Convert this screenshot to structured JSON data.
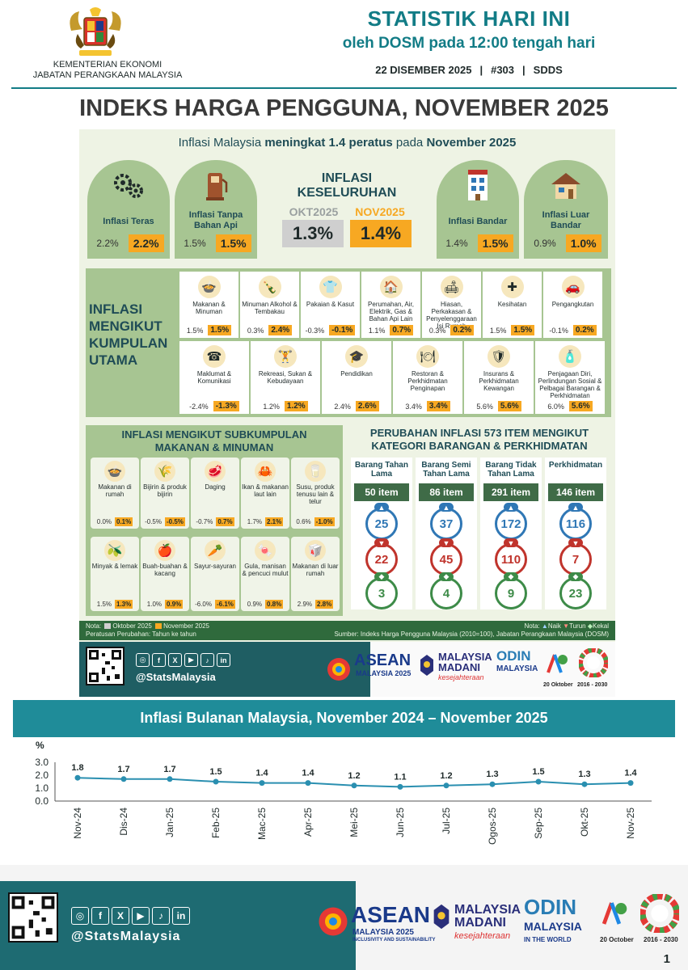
{
  "header": {
    "ministry_line1": "KEMENTERIAN EKONOMI",
    "ministry_line2": "JABATAN PERANGKAAN MALAYSIA",
    "title": "STATISTIK HARI INI",
    "subtitle": "oleh DOSM pada 12:00 tengah hari",
    "date": "22 DISEMBER 2025",
    "issue": "#303",
    "tag": "SDDS",
    "sep": "|"
  },
  "main_title": "INDEKS HARGA PENGGUNA, NOVEMBER 2025",
  "headline": {
    "pre": "Inflasi Malaysia ",
    "bold1": "meningkat 1.4 peratus",
    "mid": " pada ",
    "bold2": "November 2025"
  },
  "arches": [
    {
      "label": "Inflasi Teras",
      "old": "2.2%",
      "new": "2.2%",
      "icon": "gears-icon"
    },
    {
      "label": "Inflasi Tanpa Bahan Api",
      "old": "1.5%",
      "new": "1.5%",
      "icon": "fuel-pump-icon"
    },
    {
      "label": "Inflasi Bandar",
      "old": "1.4%",
      "new": "1.5%",
      "icon": "building-icon"
    },
    {
      "label": "Inflasi Luar Bandar",
      "old": "0.9%",
      "new": "1.0%",
      "icon": "house-icon"
    }
  ],
  "overall": {
    "title_line1": "INFLASI",
    "title_line2": "KESELURUHAN",
    "label_old": "OKT2025",
    "label_new": "NOV2025",
    "old": "1.3%",
    "new": "1.4%"
  },
  "groups": {
    "title_lines": [
      "INFLASI",
      "MENGIKUT",
      "KUMPULAN",
      "UTAMA"
    ],
    "row1": [
      {
        "label": "Makanan & Minuman",
        "old": "1.5%",
        "new": "1.5%",
        "icon": "food-icon"
      },
      {
        "label": "Minuman Alkohol & Tembakau",
        "old": "0.3%",
        "new": "2.4%",
        "icon": "bottle-icon"
      },
      {
        "label": "Pakaian & Kasut",
        "old": "-0.3%",
        "new": "-0.1%",
        "icon": "clothing-icon"
      },
      {
        "label": "Perumahan, Air, Elektrik, Gas & Bahan Api Lain",
        "old": "1.1%",
        "new": "0.7%",
        "icon": "housing-icon"
      },
      {
        "label": "Hiasan, Perkakasan & Penyelenggaraan Isi Rumah",
        "old": "0.3%",
        "new": "0.2%",
        "icon": "sofa-icon"
      },
      {
        "label": "Kesihatan",
        "old": "1.5%",
        "new": "1.5%",
        "icon": "medical-icon"
      },
      {
        "label": "Pengangkutan",
        "old": "-0.1%",
        "new": "0.2%",
        "icon": "car-icon"
      }
    ],
    "row2": [
      {
        "label": "Maklumat & Komunikasi",
        "old": "-2.4%",
        "new": "-1.3%",
        "icon": "phone-icon"
      },
      {
        "label": "Rekreasi, Sukan & Kebudayaan",
        "old": "1.2%",
        "new": "1.2%",
        "icon": "dumbbell-icon"
      },
      {
        "label": "Pendidikan",
        "old": "2.4%",
        "new": "2.6%",
        "icon": "graduation-cap-icon"
      },
      {
        "label": "Restoran & Perkhidmatan Penginapan",
        "old": "3.4%",
        "new": "3.4%",
        "icon": "restaurant-icon"
      },
      {
        "label": "Insurans & Perkhidmatan Kewangan",
        "old": "5.6%",
        "new": "5.6%",
        "icon": "shield-icon"
      },
      {
        "label": "Penjagaan Diri, Perlindungan Sosial & Pelbagai Barangan & Perkhidmatan",
        "old": "6.0%",
        "new": "5.6%",
        "icon": "personal-care-icon"
      }
    ]
  },
  "subgroups": {
    "title_line1": "INFLASI MENGIKUT SUBKUMPULAN",
    "title_line2": "MAKANAN & MINUMAN",
    "row1": [
      {
        "label": "Makanan di rumah",
        "old": "0.0%",
        "new": "0.1%",
        "icon": "pot-icon"
      },
      {
        "label": "Bijirin & produk bijirin",
        "old": "-0.5%",
        "new": "-0.5%",
        "icon": "grain-icon"
      },
      {
        "label": "Daging",
        "old": "-0.7%",
        "new": "0.7%",
        "icon": "meat-icon"
      },
      {
        "label": "Ikan & makanan laut lain",
        "old": "1.7%",
        "new": "2.1%",
        "icon": "crab-icon"
      },
      {
        "label": "Susu, produk tenusu lain & telur",
        "old": "0.6%",
        "new": "-1.0%",
        "icon": "milk-icon"
      }
    ],
    "row2": [
      {
        "label": "Minyak & lemak",
        "old": "1.5%",
        "new": "1.3%",
        "icon": "oil-icon"
      },
      {
        "label": "Buah-buahan & kacang",
        "old": "1.0%",
        "new": "0.9%",
        "icon": "apple-icon"
      },
      {
        "label": "Sayur-sayuran",
        "old": "-6.0%",
        "new": "-6.1%",
        "icon": "vegetable-icon"
      },
      {
        "label": "Gula, manisan & pencuci mulut",
        "old": "0.9%",
        "new": "0.8%",
        "icon": "sweets-icon"
      },
      {
        "label": "Makanan di luar rumah",
        "old": "2.9%",
        "new": "2.8%",
        "icon": "takeaway-icon"
      }
    ]
  },
  "categories": {
    "title_line1": "PERUBAHAN INFLASI 573 ITEM MENGIKUT",
    "title_line2": "KATEGORI BARANGAN & PERKHIDMATAN",
    "items": [
      {
        "label": "Barang Tahan Lama",
        "count": "50 item",
        "up": "25",
        "down": "22",
        "same": "3"
      },
      {
        "label": "Barang Semi Tahan Lama",
        "count": "86 item",
        "up": "37",
        "down": "45",
        "same": "4"
      },
      {
        "label": "Barang Tidak Tahan Lama",
        "count": "291 item",
        "up": "172",
        "down": "110",
        "same": "9"
      },
      {
        "label": "Perkhidmatan",
        "count": "146 item",
        "up": "116",
        "down": "7",
        "same": "23"
      }
    ]
  },
  "notes": {
    "nota": "Nota:",
    "oct": "Oktober 2025",
    "nov": "November 2025",
    "pct_note": "Peratusan Perubahan: Tahun ke tahun",
    "legend_nota": "Nota:",
    "naik": "Naik",
    "turun": "Turun",
    "kekal": "Kekal",
    "source": "Sumber: Indeks Harga Pengguna Malaysia (2010=100), Jabatan Perangkaan Malaysia (DOSM)"
  },
  "banner": {
    "handle": "@StatsMalaysia",
    "asean": "ASEAN",
    "asean_sub": "MALAYSIA 2025",
    "madani1": "MALAYSIA",
    "madani2": "MADANI",
    "madani3": "kesejahteraan",
    "odin1": "ODIN",
    "odin2": "MALAYSIA",
    "wsd": "20 Oktober",
    "sdg": "2016 - 2030"
  },
  "chart_data": {
    "type": "line",
    "title": "Inflasi Bulanan Malaysia, November 2024 – November 2025",
    "ylabel": "%",
    "categories": [
      "Nov-24",
      "Dis-24",
      "Jan-25",
      "Feb-25",
      "Mac-25",
      "Apr-25",
      "Mei-25",
      "Jun-25",
      "Jul-25",
      "Ogos-25",
      "Sep-25",
      "Okt-25",
      "Nov-25"
    ],
    "values": [
      1.8,
      1.7,
      1.7,
      1.5,
      1.4,
      1.4,
      1.2,
      1.1,
      1.2,
      1.3,
      1.5,
      1.3,
      1.4
    ],
    "data_labels": [
      "1.8",
      "1.7",
      "1.7",
      "1.5",
      "1.4",
      "1.4",
      "1.2",
      "1.1",
      "1.2",
      "1.3",
      "1.5",
      "1.3",
      "1.4"
    ],
    "yticks": [
      "3.0",
      "2.0",
      "1.0",
      "0.0"
    ],
    "ylim": [
      0,
      3
    ],
    "grid": false,
    "color": "#2a8fb0"
  },
  "footer": {
    "handle": "@StatsMalaysia",
    "asean": "ASEAN",
    "asean_sub": "MALAYSIA 2025",
    "asean_sub2": "INCLUSIVITY AND SUSTAINABILITY",
    "madani1": "MALAYSIA",
    "madani2": "MADANI",
    "madani3": "kesejahteraan",
    "odin1": "ODIN",
    "odin2": "MALAYSIA",
    "odin3": "IN THE WORLD",
    "wsd": "20 October",
    "sdg": "2016 - 2030",
    "page": "1"
  },
  "colors": {
    "teal": "#127c86",
    "orange": "#f7a822",
    "green": "#a7c592",
    "dark_green": "#3f6b47"
  }
}
